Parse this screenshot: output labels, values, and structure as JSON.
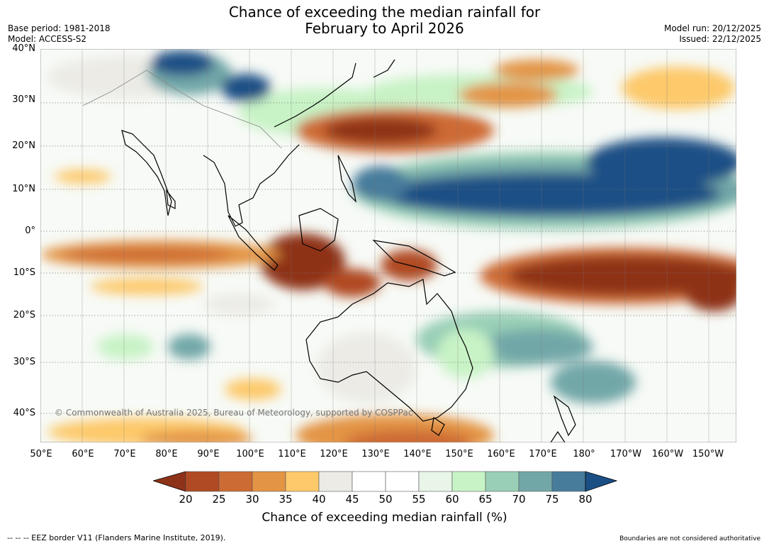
{
  "header": {
    "title_line1": "Chance of exceeding the median rainfall for",
    "title_line2": "February to April 2026",
    "base_period": "Base period: 1981-2018",
    "model": "Model: ACCESS-S2",
    "model_run": "Model run: 20/12/2025",
    "issued": "Issued: 22/12/2025"
  },
  "map": {
    "lat_labels": [
      "40°N",
      "30°N",
      "20°N",
      "10°N",
      "0°",
      "10°S",
      "20°S",
      "30°S",
      "40°S"
    ],
    "lon_labels": [
      "50°E",
      "60°E",
      "70°E",
      "80°E",
      "90°E",
      "100°E",
      "110°E",
      "120°E",
      "130°E",
      "140°E",
      "150°E",
      "160°E",
      "170°E",
      "180°",
      "170°W",
      "160°W",
      "150°W"
    ],
    "copyright": "© Commonwealth of Australia 2025, Bureau of Meteorology, supported by COSPPac"
  },
  "colorbar": {
    "ticks": [
      "20",
      "25",
      "30",
      "35",
      "40",
      "45",
      "50",
      "55",
      "60",
      "65",
      "70",
      "75",
      "80"
    ],
    "colors": [
      "#8e3219",
      "#b04a24",
      "#cd6b34",
      "#e39445",
      "#fdc96a",
      "#ecebe6",
      "#ffffff",
      "#ffffff",
      "#e8f5e8",
      "#c8f3c6",
      "#99cfb6",
      "#72a7a8",
      "#477c9b",
      "#1a4f85"
    ],
    "label": "Chance of exceeding median rainfall (%)"
  },
  "footer": {
    "eez": "--  --  -- EEZ border V11 (Flanders Marine Institute, 2019).",
    "boundaries": "Boundaries are not considered authoritative"
  }
}
